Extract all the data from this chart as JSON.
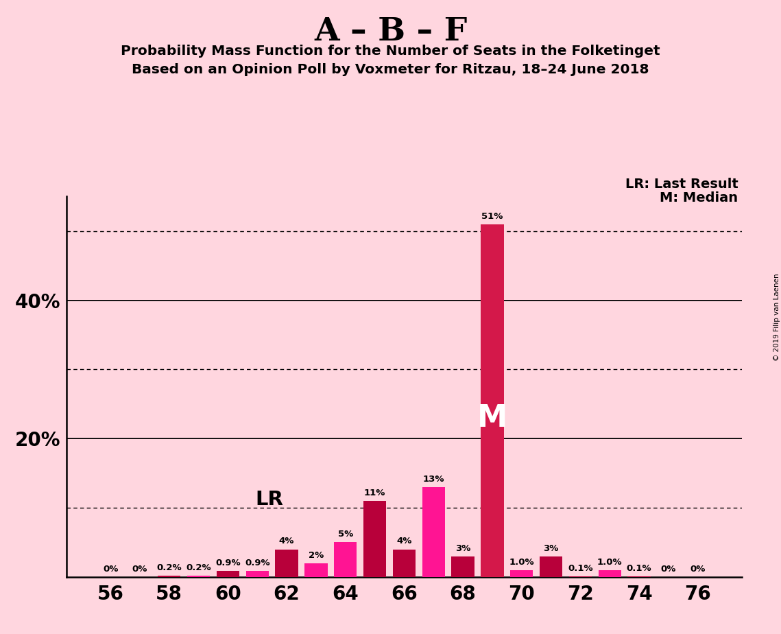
{
  "title_main": "A – B – F",
  "title_sub1": "Probability Mass Function for the Number of Seats in the Folketinget",
  "title_sub2": "Based on an Opinion Poll by Voxmeter for Ritzau, 18–24 June 2018",
  "copyright": "© 2019 Filip van Laenen",
  "seats": [
    56,
    57,
    58,
    59,
    60,
    61,
    62,
    63,
    64,
    65,
    66,
    67,
    68,
    69,
    70,
    71,
    72,
    73,
    74,
    75,
    76
  ],
  "values": [
    0.0,
    0.0,
    0.2,
    0.2,
    0.9,
    0.9,
    4.0,
    2.0,
    5.0,
    11.0,
    4.0,
    13.0,
    3.0,
    51.0,
    1.0,
    3.0,
    0.1,
    1.0,
    0.1,
    0.0,
    0.0
  ],
  "labels": [
    "0%",
    "0%",
    "0.2%",
    "0.2%",
    "0.9%",
    "0.9%",
    "4%",
    "2%",
    "5%",
    "11%",
    "4%",
    "13%",
    "3%",
    "51%",
    "1.0%",
    "3%",
    "0.1%",
    "1.0%",
    "0.1%",
    "0%",
    "0%"
  ],
  "bar_colors": [
    "#B8003A",
    "#FF1493",
    "#B8003A",
    "#FF1493",
    "#B8003A",
    "#FF1493",
    "#B8003A",
    "#FF1493",
    "#FF1493",
    "#B8003A",
    "#B8003A",
    "#FF1493",
    "#B8003A",
    "#D4184A",
    "#FF1493",
    "#B8003A",
    "#B8003A",
    "#FF1493",
    "#B8003A",
    "#B8003A",
    "#FF1493"
  ],
  "last_result_seat": 62,
  "median_seat": 69,
  "background_color": "#FFD6DF",
  "solid_yticks": [
    20,
    40
  ],
  "dotted_yticks": [
    10,
    30,
    50
  ],
  "xtick_seats": [
    56,
    58,
    60,
    62,
    64,
    66,
    68,
    70,
    72,
    74,
    76
  ],
  "ylim_max": 55,
  "bar_width": 0.78,
  "legend_lr": "LR: Last Result",
  "legend_m": "M: Median",
  "lr_label": "LR",
  "m_label": "M"
}
